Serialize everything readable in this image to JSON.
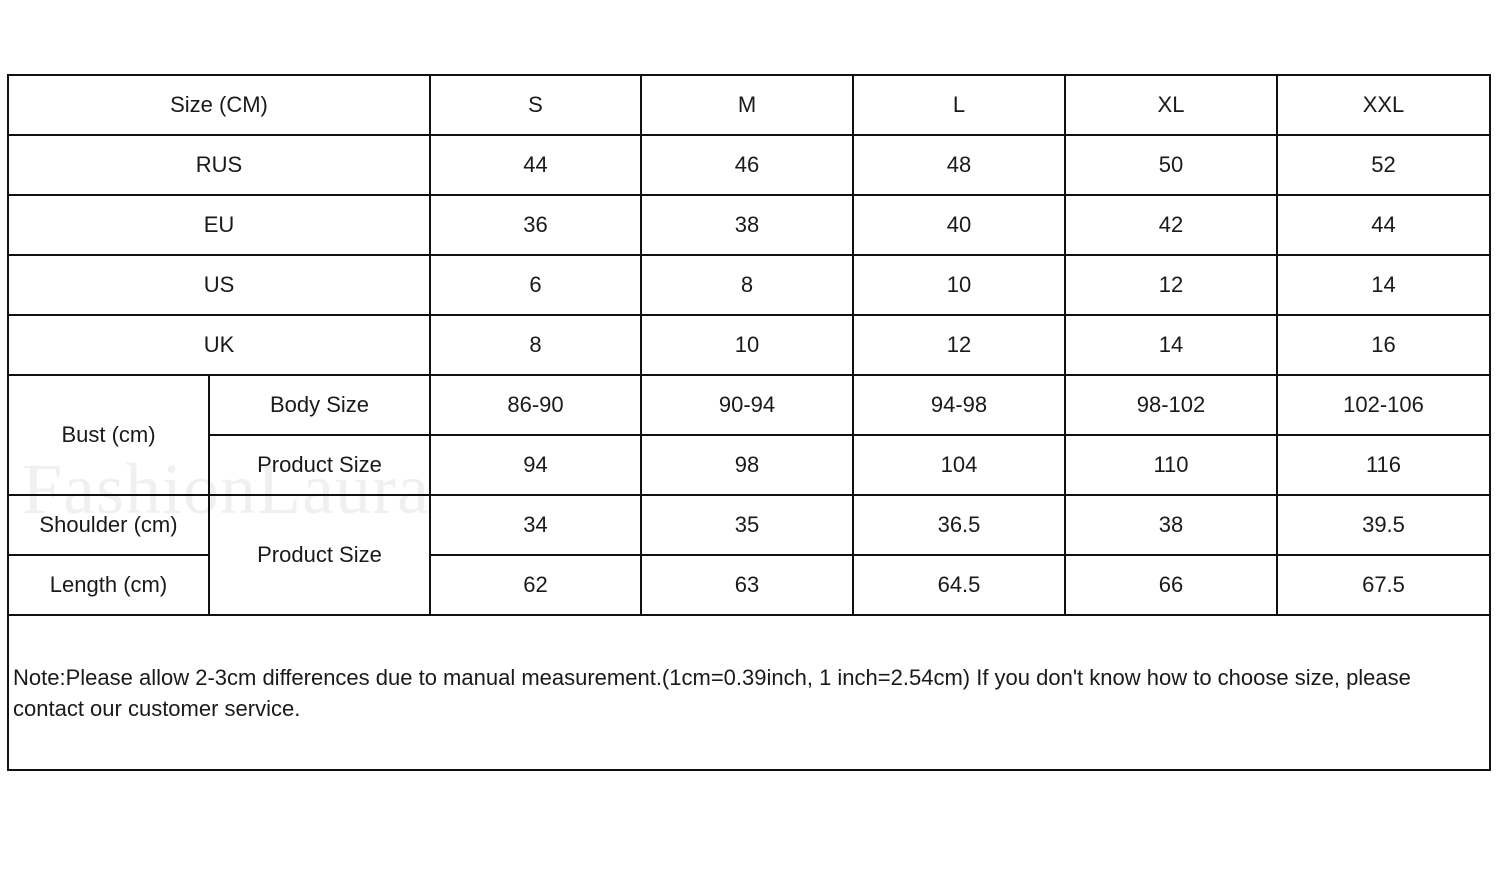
{
  "header": {
    "label": "Size (CM)",
    "sizes": [
      "S",
      "M",
      "L",
      "XL",
      "XXL"
    ]
  },
  "conversion_rows": [
    {
      "label": "RUS",
      "values": [
        "44",
        "46",
        "48",
        "50",
        "52"
      ]
    },
    {
      "label": "EU",
      "values": [
        "36",
        "38",
        "40",
        "42",
        "44"
      ]
    },
    {
      "label": "US",
      "values": [
        "6",
        "8",
        "10",
        "12",
        "14"
      ]
    },
    {
      "label": "UK",
      "values": [
        "8",
        "10",
        "12",
        "14",
        "16"
      ]
    }
  ],
  "bust": {
    "label": "Bust (cm)",
    "body": {
      "label": "Body Size",
      "values": [
        "86-90",
        "90-94",
        "94-98",
        "98-102",
        "102-106"
      ]
    },
    "product": {
      "label": "Product Size",
      "values": [
        "94",
        "98",
        "104",
        "110",
        "116"
      ]
    }
  },
  "shoulder": {
    "label": "Shoulder (cm)",
    "values": [
      "34",
      "35",
      "36.5",
      "38",
      "39.5"
    ]
  },
  "length": {
    "label": "Length (cm)",
    "values": [
      "62",
      "63",
      "64.5",
      "66",
      "67.5"
    ]
  },
  "product_size_label": "Product Size",
  "note": "Note:Please allow 2-3cm differences due to manual measurement.(1cm=0.39inch, 1 inch=2.54cm) If you don't know how to choose size, please contact our customer service.",
  "watermark": "FashionLaura"
}
